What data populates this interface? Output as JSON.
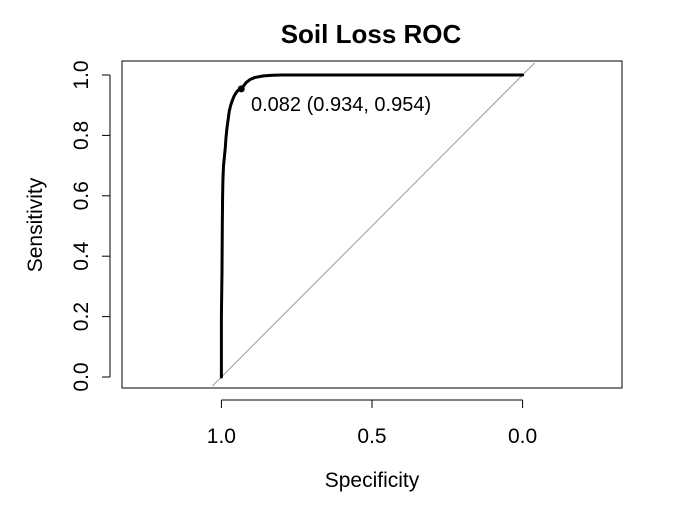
{
  "chart_data": {
    "type": "line",
    "title": "Soil Loss ROC",
    "xlabel": "Specificity",
    "ylabel": "Sensitivity",
    "x_reversed": true,
    "xlim": [
      1.33,
      -0.33
    ],
    "ylim": [
      0.0,
      1.0
    ],
    "x_ticks": [
      1.0,
      0.5,
      0.0
    ],
    "x_tick_labels": [
      "1.0",
      "0.5",
      "0.0"
    ],
    "y_ticks": [
      0.0,
      0.2,
      0.4,
      0.6,
      0.8,
      1.0
    ],
    "y_tick_labels": [
      "0.0",
      "0.2",
      "0.4",
      "0.6",
      "0.8",
      "1.0"
    ],
    "grid": false,
    "legend": "none",
    "series": [
      {
        "specificity": [
          1.0,
          1.0,
          0.998,
          0.997,
          0.996,
          0.995,
          0.993,
          0.99,
          0.987,
          0.985,
          0.982,
          0.978,
          0.974,
          0.969,
          0.964,
          0.958,
          0.952,
          0.946,
          0.934,
          0.927,
          0.918,
          0.905,
          0.888,
          0.86,
          0.83,
          0.8,
          0.6,
          0.3,
          0.0
        ],
        "sensitivity": [
          0.0,
          0.2,
          0.35,
          0.5,
          0.6,
          0.65,
          0.7,
          0.73,
          0.76,
          0.79,
          0.82,
          0.85,
          0.88,
          0.9,
          0.915,
          0.93,
          0.94,
          0.948,
          0.954,
          0.963,
          0.975,
          0.985,
          0.992,
          0.997,
          0.999,
          1.0,
          1.0,
          1.0,
          1.0
        ],
        "color": "#000000"
      }
    ],
    "reference_line": {
      "specificity": [
        1.0,
        0.0
      ],
      "sensitivity": [
        0.0,
        1.0
      ],
      "color": "#999999"
    },
    "threshold_point": {
      "threshold": 0.082,
      "specificity": 0.934,
      "sensitivity": 0.954
    },
    "annotation": "0.082 (0.934, 0.954)"
  }
}
